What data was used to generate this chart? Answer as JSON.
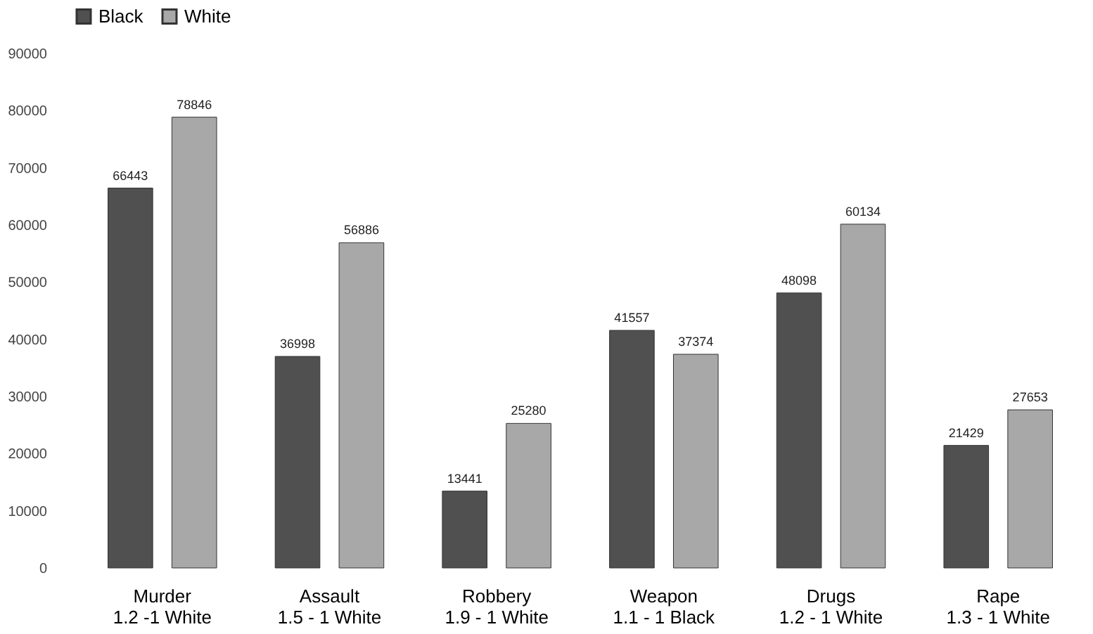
{
  "chart_data": {
    "type": "bar",
    "categories": [
      "Murder\n1.2 -1 White",
      "Assault\n1.5 - 1 White",
      "Robbery\n1.9 - 1 White",
      "Weapon\n1.1 - 1 Black",
      "Drugs\n1.2 - 1 White",
      "Rape\n1.3 - 1 White"
    ],
    "series": [
      {
        "name": "Black",
        "color": "#505050",
        "values": [
          66443,
          36998,
          13441,
          41557,
          48098,
          21429
        ]
      },
      {
        "name": "White",
        "color": "#a8a8a8",
        "values": [
          78846,
          56886,
          25280,
          37374,
          60134,
          27653
        ]
      }
    ],
    "ylim": [
      0,
      90000
    ],
    "yticks": [
      0,
      10000,
      20000,
      30000,
      40000,
      50000,
      60000,
      70000,
      80000,
      90000
    ],
    "data_labels": true,
    "grid": false,
    "legend": "top"
  }
}
